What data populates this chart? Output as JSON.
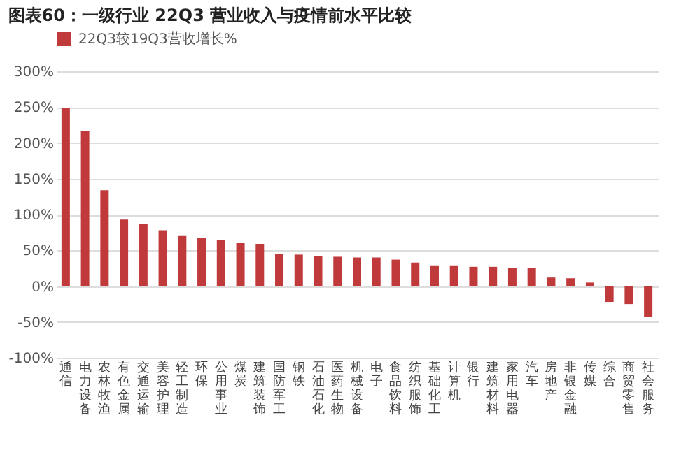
{
  "chart_data": {
    "type": "bar",
    "title": "图表60：一级行业 22Q3 营业收入与疫情前水平比较",
    "categories": [
      "通信",
      "电力设备",
      "农林牧渔",
      "有色金属",
      "交通运输",
      "美容护理",
      "轻工制造",
      "环保",
      "公用事业",
      "煤炭",
      "建筑装饰",
      "国防军工",
      "钢铁",
      "石油石化",
      "医药生物",
      "机械设备",
      "电子",
      "食品饮料",
      "纺织服饰",
      "基础化工",
      "计算机",
      "银行",
      "建筑材料",
      "家用电器",
      "汽车",
      "房地产",
      "非银金融",
      "传媒",
      "综合",
      "商贸零售",
      "社会服务"
    ],
    "series": [
      {
        "name": "22Q3较19Q3营收增长%",
        "color": "#c0393b",
        "values": [
          249,
          216,
          134,
          93,
          87,
          78,
          70,
          67,
          64,
          60,
          59,
          45,
          44,
          42,
          41,
          40,
          40,
          37,
          33,
          29,
          29,
          27,
          27,
          25,
          25,
          12,
          11,
          5,
          -22,
          -25,
          -43
        ]
      }
    ],
    "ylim": [
      -100,
      300
    ],
    "yticks": [
      {
        "value": -100,
        "label": "-100%"
      },
      {
        "value": -50,
        "label": "-50%"
      },
      {
        "value": 0,
        "label": "0%"
      },
      {
        "value": 50,
        "label": "50%"
      },
      {
        "value": 100,
        "label": "100%"
      },
      {
        "value": 150,
        "label": "150%"
      },
      {
        "value": 200,
        "label": "200%"
      },
      {
        "value": 250,
        "label": "250%"
      },
      {
        "value": 300,
        "label": "300%"
      }
    ],
    "grid": "y",
    "legend": "top"
  }
}
